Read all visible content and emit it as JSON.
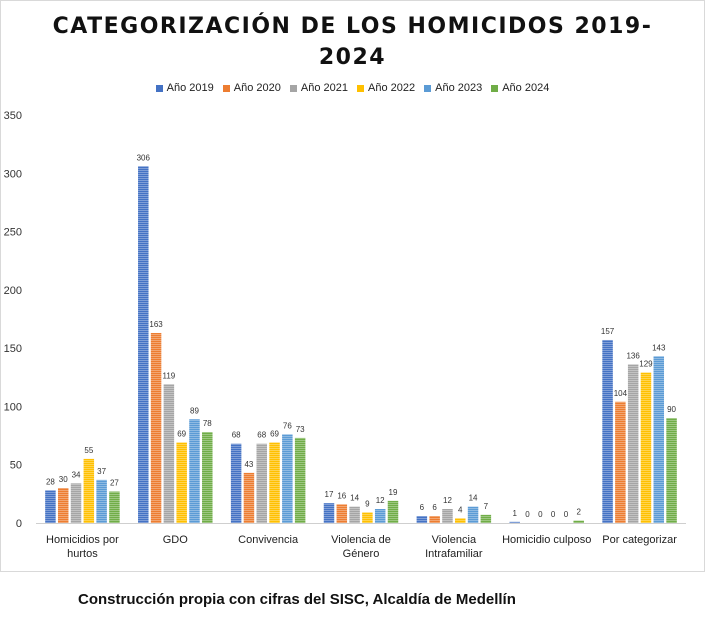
{
  "chart_data": {
    "type": "bar",
    "title": "CATEGORIZACIÓN DE LOS HOMICIDOS 2019-2024",
    "categories": [
      "Homicidios por hurtos",
      "GDO",
      "Convivencia",
      "Violencia de Género",
      "Violencia Intrafamiliar",
      "Homicidio culposo",
      "Por categorizar"
    ],
    "series": [
      {
        "name": "Año 2019",
        "color": "#4472c4",
        "values": [
          28,
          306,
          68,
          17,
          6,
          1,
          157
        ]
      },
      {
        "name": "Año 2020",
        "color": "#ed7d31",
        "values": [
          30,
          163,
          43,
          16,
          6,
          0,
          104
        ]
      },
      {
        "name": "Año 2021",
        "color": "#a5a5a5",
        "values": [
          34,
          119,
          68,
          14,
          12,
          0,
          136
        ]
      },
      {
        "name": "Año 2022",
        "color": "#ffc000",
        "values": [
          55,
          69,
          69,
          9,
          4,
          0,
          129
        ]
      },
      {
        "name": "Año 2023",
        "color": "#5b9bd5",
        "values": [
          37,
          89,
          76,
          12,
          14,
          0,
          143
        ]
      },
      {
        "name": "Año 2024",
        "color": "#70ad47",
        "values": [
          27,
          78,
          73,
          19,
          7,
          2,
          90
        ]
      }
    ],
    "ylim": [
      0,
      350
    ],
    "yticks": [
      0,
      50,
      100,
      150,
      200,
      250,
      300,
      350
    ],
    "grid": false,
    "legend": "top-center",
    "xlabel": "",
    "ylabel": ""
  },
  "source_note": "Construcción propia con cifras del SISC, Alcaldía de Medellín"
}
